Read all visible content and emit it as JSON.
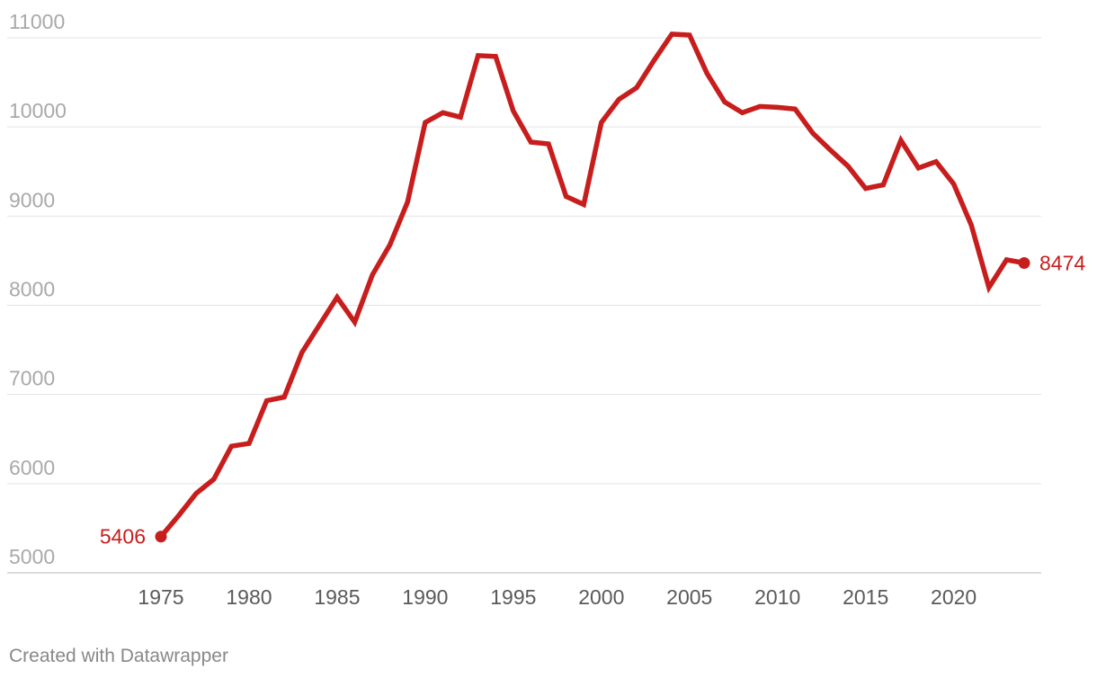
{
  "chart_data": {
    "type": "line",
    "title": "",
    "xlabel": "",
    "ylabel": "",
    "xlim": [
      1970,
      2025
    ],
    "ylim": [
      5000,
      11000
    ],
    "y_ticks": [
      "5000",
      "6000",
      "7000",
      "8000",
      "9000",
      "10000",
      "11000"
    ],
    "x_ticks": [
      "1975",
      "1980",
      "1985",
      "1990",
      "1995",
      "2000",
      "2005",
      "2010",
      "2015",
      "2020"
    ],
    "grid": "horizontal",
    "color": "#c71e1d",
    "series": [
      {
        "x": [
          1975,
          1976,
          1977,
          1978,
          1979,
          1980,
          1981,
          1982,
          1983,
          1984,
          1985,
          1986,
          1987,
          1988,
          1989,
          1990,
          1991,
          1992,
          1993,
          1994,
          1995,
          1996,
          1997,
          1998,
          1999,
          2000,
          2001,
          2002,
          2003,
          2004,
          2005,
          2006,
          2007,
          2008,
          2009,
          2010,
          2011,
          2012,
          2013,
          2014,
          2015,
          2016,
          2017,
          2018,
          2019,
          2020,
          2021,
          2022,
          2023,
          2024
        ],
        "values": [
          5406,
          5640,
          5890,
          6050,
          6420,
          6450,
          6930,
          6970,
          7470,
          7780,
          8090,
          7810,
          8340,
          8680,
          9160,
          10050,
          10160,
          10110,
          10800,
          10790,
          10180,
          9830,
          9810,
          9220,
          9130,
          10050,
          10310,
          10440,
          10750,
          11040,
          11030,
          10600,
          10280,
          10160,
          10230,
          10220,
          10200,
          9930,
          9740,
          9560,
          9310,
          9350,
          9850,
          9540,
          9610,
          9360,
          8900,
          8200,
          8510,
          8474
        ]
      }
    ],
    "annotations": {
      "start": "5406",
      "end": "8474"
    }
  },
  "footer": "Created with Datawrapper"
}
